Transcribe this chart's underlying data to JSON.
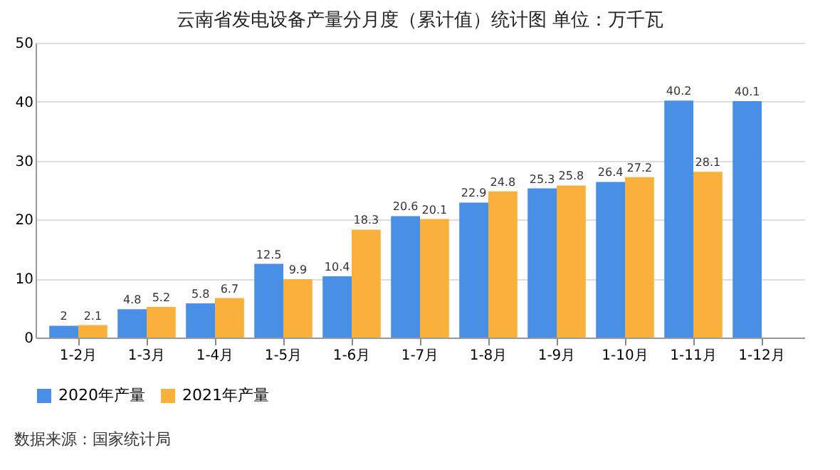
{
  "chart_data": {
    "type": "bar",
    "title": "云南省发电设备产量分月度（累计值）统计图 单位：万千瓦",
    "categories": [
      "1-2月",
      "1-3月",
      "1-4月",
      "1-5月",
      "1-6月",
      "1-7月",
      "1-8月",
      "1-9月",
      "1-10月",
      "1-11月",
      "1-12月"
    ],
    "series": [
      {
        "name": "2020年产量",
        "color": "#4a8fe6",
        "values": [
          2,
          4.8,
          5.8,
          12.5,
          10.4,
          20.6,
          22.9,
          25.3,
          26.4,
          40.2,
          40.1
        ]
      },
      {
        "name": "2021年产量",
        "color": "#fbb03b",
        "values": [
          2.1,
          5.2,
          6.7,
          9.9,
          18.3,
          20.1,
          24.8,
          25.8,
          27.2,
          28.1,
          null
        ]
      }
    ],
    "ylim": [
      0,
      50
    ],
    "yticks": [
      0,
      10,
      20,
      30,
      40,
      50
    ],
    "grid": "y",
    "legend": "bottom",
    "data_labels": true,
    "annotations": [
      "数据来源：国家统计局"
    ]
  }
}
